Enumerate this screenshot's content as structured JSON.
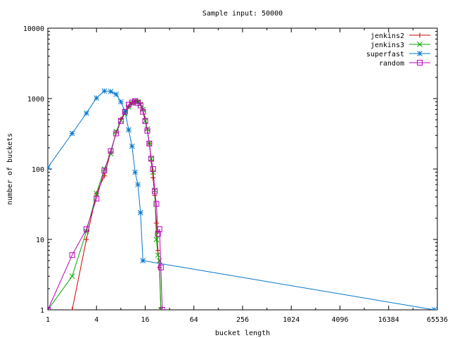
{
  "chart_data": {
    "type": "line",
    "title": "Sample input: 50000",
    "xlabel": "bucket length",
    "ylabel": "number of buckets",
    "x_scale": "log2",
    "y_scale": "log10",
    "xlim": [
      1,
      65536
    ],
    "ylim": [
      1,
      10000
    ],
    "x_ticks": [
      {
        "value": 1,
        "label": "1"
      },
      {
        "value": 4,
        "label": "4"
      },
      {
        "value": 16,
        "label": "16"
      },
      {
        "value": 64,
        "label": "64"
      },
      {
        "value": 256,
        "label": "256"
      },
      {
        "value": 1024,
        "label": "1024"
      },
      {
        "value": 4096,
        "label": "4096"
      },
      {
        "value": 16384,
        "label": "16384"
      },
      {
        "value": 65536,
        "label": "65536"
      }
    ],
    "y_ticks": [
      {
        "value": 1,
        "label": "1"
      },
      {
        "value": 10,
        "label": "10"
      },
      {
        "value": 100,
        "label": "100"
      },
      {
        "value": 1000,
        "label": "1000"
      },
      {
        "value": 10000,
        "label": "10000"
      }
    ],
    "grid": false,
    "legend_position": "top-right",
    "series": [
      {
        "name": "jenkins2",
        "color": "#cc0000",
        "marker": "plus",
        "points": [
          [
            2,
            1
          ],
          [
            3,
            10
          ],
          [
            4,
            45
          ],
          [
            5,
            80
          ],
          [
            6,
            175
          ],
          [
            7,
            330
          ],
          [
            8,
            510
          ],
          [
            9,
            640
          ],
          [
            10,
            770
          ],
          [
            11,
            870
          ],
          [
            12,
            920
          ],
          [
            13,
            920
          ],
          [
            14,
            860
          ],
          [
            15,
            680
          ],
          [
            16,
            520
          ],
          [
            17,
            360
          ],
          [
            18,
            230
          ],
          [
            19,
            130
          ],
          [
            20,
            75
          ],
          [
            21,
            42
          ],
          [
            22,
            17
          ],
          [
            23,
            7
          ],
          [
            24,
            4
          ],
          [
            25,
            1
          ]
        ]
      },
      {
        "name": "jenkins3",
        "color": "#00aa00",
        "marker": "cross",
        "points": [
          [
            1,
            1
          ],
          [
            2,
            3
          ],
          [
            3,
            13
          ],
          [
            4,
            45
          ],
          [
            5,
            100
          ],
          [
            6,
            165
          ],
          [
            7,
            340
          ],
          [
            8,
            490
          ],
          [
            9,
            610
          ],
          [
            10,
            760
          ],
          [
            11,
            860
          ],
          [
            12,
            920
          ],
          [
            13,
            900
          ],
          [
            14,
            830
          ],
          [
            15,
            700
          ],
          [
            16,
            480
          ],
          [
            17,
            370
          ],
          [
            18,
            230
          ],
          [
            19,
            140
          ],
          [
            20,
            90
          ],
          [
            21,
            50
          ],
          [
            22,
            10
          ],
          [
            23,
            6
          ],
          [
            24,
            5
          ],
          [
            25,
            1
          ]
        ]
      },
      {
        "name": "superfast",
        "color": "#0077cc",
        "marker": "star",
        "points": [
          [
            1,
            105
          ],
          [
            2,
            320
          ],
          [
            3,
            620
          ],
          [
            4,
            1020
          ],
          [
            5,
            1280
          ],
          [
            6,
            1260
          ],
          [
            7,
            1150
          ],
          [
            8,
            900
          ],
          [
            9,
            650
          ],
          [
            10,
            360
          ],
          [
            11,
            210
          ],
          [
            12,
            90
          ],
          [
            13,
            60
          ],
          [
            14,
            24
          ],
          [
            15,
            5
          ],
          [
            60000,
            1
          ]
        ]
      },
      {
        "name": "random",
        "color": "#bb00bb",
        "marker": "square",
        "points": [
          [
            1,
            1
          ],
          [
            2,
            6
          ],
          [
            3,
            14
          ],
          [
            4,
            38
          ],
          [
            5,
            95
          ],
          [
            6,
            180
          ],
          [
            7,
            320
          ],
          [
            8,
            480
          ],
          [
            9,
            650
          ],
          [
            10,
            820
          ],
          [
            11,
            880
          ],
          [
            12,
            920
          ],
          [
            13,
            870
          ],
          [
            14,
            800
          ],
          [
            15,
            650
          ],
          [
            16,
            480
          ],
          [
            17,
            350
          ],
          [
            18,
            230
          ],
          [
            19,
            140
          ],
          [
            20,
            100
          ],
          [
            21,
            48
          ],
          [
            22,
            32
          ],
          [
            23,
            12
          ],
          [
            24,
            14
          ],
          [
            25,
            4
          ],
          [
            26,
            1
          ]
        ]
      }
    ]
  }
}
